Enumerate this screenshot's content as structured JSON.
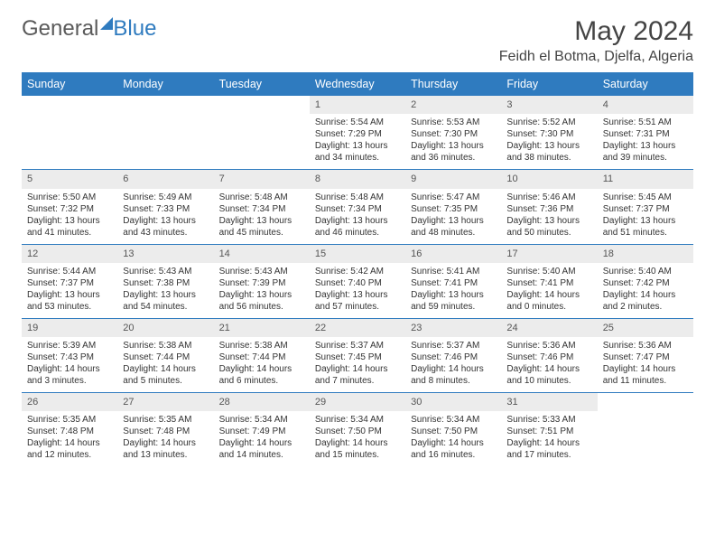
{
  "brand": {
    "part1": "General",
    "part2": "Blue"
  },
  "title": "May 2024",
  "location": "Feidh el Botma, Djelfa, Algeria",
  "colors": {
    "header_bg": "#2f7bbf",
    "header_text": "#ffffff",
    "daynum_bg": "#ececec",
    "border": "#2f7bbf",
    "text": "#333333",
    "brand_gray": "#5a5a5a",
    "brand_blue": "#2f7bbf"
  },
  "days_of_week": [
    "Sunday",
    "Monday",
    "Tuesday",
    "Wednesday",
    "Thursday",
    "Friday",
    "Saturday"
  ],
  "weeks": [
    [
      null,
      null,
      null,
      {
        "n": "1",
        "sr": "5:54 AM",
        "ss": "7:29 PM",
        "dl": "13 hours and 34 minutes."
      },
      {
        "n": "2",
        "sr": "5:53 AM",
        "ss": "7:30 PM",
        "dl": "13 hours and 36 minutes."
      },
      {
        "n": "3",
        "sr": "5:52 AM",
        "ss": "7:30 PM",
        "dl": "13 hours and 38 minutes."
      },
      {
        "n": "4",
        "sr": "5:51 AM",
        "ss": "7:31 PM",
        "dl": "13 hours and 39 minutes."
      }
    ],
    [
      {
        "n": "5",
        "sr": "5:50 AM",
        "ss": "7:32 PM",
        "dl": "13 hours and 41 minutes."
      },
      {
        "n": "6",
        "sr": "5:49 AM",
        "ss": "7:33 PM",
        "dl": "13 hours and 43 minutes."
      },
      {
        "n": "7",
        "sr": "5:48 AM",
        "ss": "7:34 PM",
        "dl": "13 hours and 45 minutes."
      },
      {
        "n": "8",
        "sr": "5:48 AM",
        "ss": "7:34 PM",
        "dl": "13 hours and 46 minutes."
      },
      {
        "n": "9",
        "sr": "5:47 AM",
        "ss": "7:35 PM",
        "dl": "13 hours and 48 minutes."
      },
      {
        "n": "10",
        "sr": "5:46 AM",
        "ss": "7:36 PM",
        "dl": "13 hours and 50 minutes."
      },
      {
        "n": "11",
        "sr": "5:45 AM",
        "ss": "7:37 PM",
        "dl": "13 hours and 51 minutes."
      }
    ],
    [
      {
        "n": "12",
        "sr": "5:44 AM",
        "ss": "7:37 PM",
        "dl": "13 hours and 53 minutes."
      },
      {
        "n": "13",
        "sr": "5:43 AM",
        "ss": "7:38 PM",
        "dl": "13 hours and 54 minutes."
      },
      {
        "n": "14",
        "sr": "5:43 AM",
        "ss": "7:39 PM",
        "dl": "13 hours and 56 minutes."
      },
      {
        "n": "15",
        "sr": "5:42 AM",
        "ss": "7:40 PM",
        "dl": "13 hours and 57 minutes."
      },
      {
        "n": "16",
        "sr": "5:41 AM",
        "ss": "7:41 PM",
        "dl": "13 hours and 59 minutes."
      },
      {
        "n": "17",
        "sr": "5:40 AM",
        "ss": "7:41 PM",
        "dl": "14 hours and 0 minutes."
      },
      {
        "n": "18",
        "sr": "5:40 AM",
        "ss": "7:42 PM",
        "dl": "14 hours and 2 minutes."
      }
    ],
    [
      {
        "n": "19",
        "sr": "5:39 AM",
        "ss": "7:43 PM",
        "dl": "14 hours and 3 minutes."
      },
      {
        "n": "20",
        "sr": "5:38 AM",
        "ss": "7:44 PM",
        "dl": "14 hours and 5 minutes."
      },
      {
        "n": "21",
        "sr": "5:38 AM",
        "ss": "7:44 PM",
        "dl": "14 hours and 6 minutes."
      },
      {
        "n": "22",
        "sr": "5:37 AM",
        "ss": "7:45 PM",
        "dl": "14 hours and 7 minutes."
      },
      {
        "n": "23",
        "sr": "5:37 AM",
        "ss": "7:46 PM",
        "dl": "14 hours and 8 minutes."
      },
      {
        "n": "24",
        "sr": "5:36 AM",
        "ss": "7:46 PM",
        "dl": "14 hours and 10 minutes."
      },
      {
        "n": "25",
        "sr": "5:36 AM",
        "ss": "7:47 PM",
        "dl": "14 hours and 11 minutes."
      }
    ],
    [
      {
        "n": "26",
        "sr": "5:35 AM",
        "ss": "7:48 PM",
        "dl": "14 hours and 12 minutes."
      },
      {
        "n": "27",
        "sr": "5:35 AM",
        "ss": "7:48 PM",
        "dl": "14 hours and 13 minutes."
      },
      {
        "n": "28",
        "sr": "5:34 AM",
        "ss": "7:49 PM",
        "dl": "14 hours and 14 minutes."
      },
      {
        "n": "29",
        "sr": "5:34 AM",
        "ss": "7:50 PM",
        "dl": "14 hours and 15 minutes."
      },
      {
        "n": "30",
        "sr": "5:34 AM",
        "ss": "7:50 PM",
        "dl": "14 hours and 16 minutes."
      },
      {
        "n": "31",
        "sr": "5:33 AM",
        "ss": "7:51 PM",
        "dl": "14 hours and 17 minutes."
      },
      null
    ]
  ],
  "labels": {
    "sunrise": "Sunrise:",
    "sunset": "Sunset:",
    "daylight": "Daylight:"
  }
}
